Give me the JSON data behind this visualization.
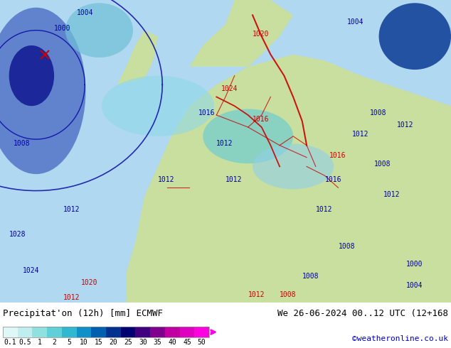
{
  "title_left": "Precipitat'on (12h) [mm] ECMWF",
  "title_right": "We 26-06-2024 00..12 UTC (12+168",
  "credit": "©weatheronline.co.uk",
  "colorbar_values": [
    0.1,
    0.5,
    1,
    2,
    5,
    10,
    15,
    20,
    25,
    30,
    35,
    40,
    45,
    50
  ],
  "colorbar_colors": [
    "#e0f7f7",
    "#c0eeee",
    "#90e0e0",
    "#60d0d8",
    "#30b8d0",
    "#1090c8",
    "#0060b0",
    "#003090",
    "#000070",
    "#400080",
    "#800090",
    "#c000a0",
    "#e000c0",
    "#ff00e0"
  ],
  "bg_color": "#ffffff",
  "map_bg": "#c8dfa0",
  "ocean_color": "#b0d8f0",
  "land_color": "#c8dfa0",
  "text_color_left": "#000000",
  "text_color_right": "#000000",
  "credit_color": "#0000cc",
  "isobar_blue": "#0000a0",
  "isobar_red": "#cc0000",
  "fig_width": 6.34,
  "fig_height": 4.9,
  "dpi": 100
}
